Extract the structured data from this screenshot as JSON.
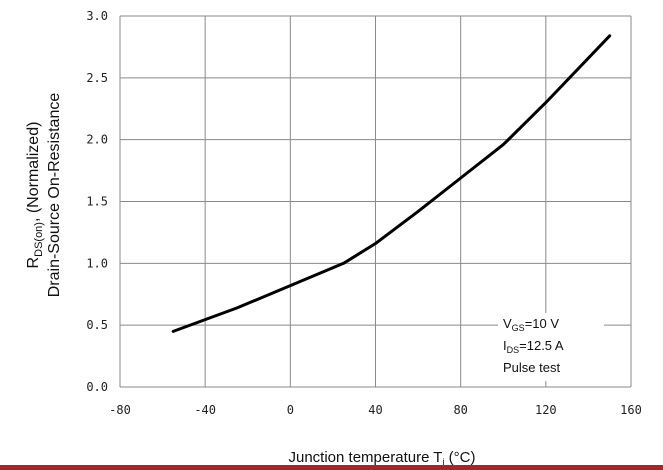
{
  "chart_data": {
    "type": "line",
    "xlabel": {
      "main": "Junction temperature T",
      "sub": "j",
      "tail": " (°C)"
    },
    "ylabel": {
      "line1_main": "R",
      "line1_sub": "DS(on)",
      "line1_tail": ", (Normalized)",
      "line2": "Drain-Source On-Resistance"
    },
    "xlim": [
      -80,
      160
    ],
    "ylim": [
      0.0,
      3.0
    ],
    "xticks": [
      -80,
      -40,
      0,
      40,
      80,
      120,
      160
    ],
    "yticks": [
      0.0,
      0.5,
      1.0,
      1.5,
      2.0,
      2.5,
      3.0
    ],
    "xtick_labels": [
      "-80",
      "-40",
      "0",
      "40",
      "80",
      "120",
      "160"
    ],
    "ytick_labels": [
      "0.0",
      "0.5",
      "1.0",
      "1.5",
      "2.0",
      "2.5",
      "3.0"
    ],
    "grid": true,
    "series": [
      {
        "x": [
          -55,
          -25,
          0,
          25,
          40,
          60,
          80,
          100,
          120,
          150
        ],
        "y": [
          0.45,
          0.64,
          0.82,
          1.0,
          1.16,
          1.42,
          1.69,
          1.96,
          2.3,
          2.84
        ]
      }
    ],
    "annotation": {
      "line1_main": "V",
      "line1_sub": "GS",
      "line1_tail": "=10 V",
      "line2_main": "I",
      "line2_sub": "DS",
      "line2_tail": "=12.5 A",
      "line3": "Pulse test"
    },
    "colors": {
      "line": "#000000",
      "grid": "#8a8a8a",
      "accent_rule": "#a0282c"
    }
  }
}
